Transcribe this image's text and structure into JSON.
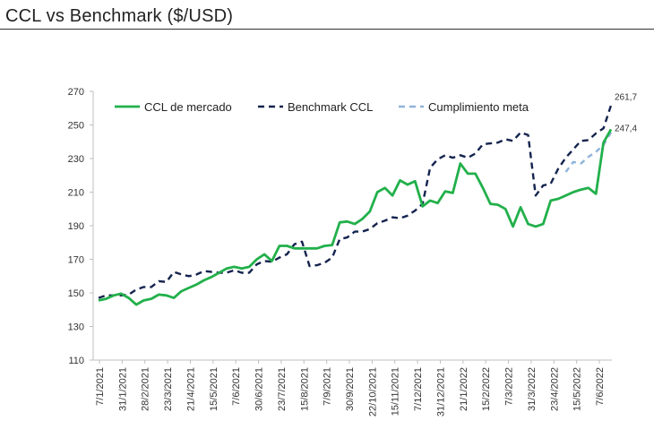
{
  "page": {
    "title": "CCL vs Benchmark ($/USD)"
  },
  "chart_data": {
    "type": "line",
    "title": "CCL vs Benchmark ($/USD)",
    "xlabel": "",
    "ylabel": "",
    "ylim": [
      110,
      270
    ],
    "yticks": [
      110,
      130,
      150,
      170,
      190,
      210,
      230,
      250,
      270
    ],
    "grid": false,
    "legend": "top",
    "x_tick_labels": [
      "7/1/2021",
      "31/1/2021",
      "28/2/2021",
      "23/3/2021",
      "21/4/2021",
      "15/5/2021",
      "7/6/2021",
      "30/6/2021",
      "23/7/2021",
      "15/8/2021",
      "7/9/2021",
      "30/9/2021",
      "22/10/2021",
      "15/11/2021",
      "7/12/2021",
      "31/12/2021",
      "21/1/2022",
      "15/2/2022",
      "7/3/2022",
      "31/3/2022",
      "23/4/2022",
      "15/5/2022",
      "7/6/2022"
    ],
    "series": [
      {
        "name": "CCL de mercado",
        "color": "#22b04b",
        "style": "solid",
        "values": [
          145.5,
          146.5,
          148.5,
          149.5,
          147,
          143,
          145.5,
          146.5,
          149,
          148.5,
          147,
          151,
          153,
          155,
          157.5,
          159.5,
          162,
          164.5,
          165.5,
          164.5,
          165.5,
          170,
          173,
          169,
          178,
          178,
          176.5,
          176.5,
          176.5,
          176.5,
          178,
          178.5,
          192,
          192.5,
          191,
          194,
          198.5,
          210,
          212.5,
          208,
          217,
          214.5,
          216.5,
          201.5,
          205,
          203.5,
          210.5,
          209.5,
          227,
          221,
          221,
          212.5,
          203,
          202.5,
          200,
          189.5,
          201,
          191,
          189.5,
          191,
          205,
          206,
          208,
          210,
          211.5,
          212.5,
          209,
          239.5,
          247.4
        ]
      },
      {
        "name": "Benchmark CCL",
        "color": "#14234e",
        "style": "dash",
        "values": [
          147,
          148.5,
          148.5,
          148.5,
          149,
          152,
          153.5,
          153.5,
          157,
          156.5,
          162.5,
          161,
          160,
          161,
          163,
          162.5,
          162,
          162,
          163.5,
          162,
          162,
          167,
          169,
          168.5,
          171,
          173,
          179,
          180.5,
          166,
          166.5,
          168,
          171,
          182,
          183,
          186.5,
          186.5,
          188,
          191.5,
          193,
          195,
          194.5,
          196,
          199,
          203,
          224.5,
          229.5,
          232,
          230.5,
          232,
          230.5,
          233,
          238.5,
          239,
          239.5,
          241.5,
          240.5,
          245.5,
          244,
          208,
          214,
          215,
          224,
          230.5,
          235.5,
          240.5,
          241,
          245,
          248,
          261.7
        ]
      },
      {
        "name": "Cumplimiento meta",
        "color": "#8fb3d9",
        "style": "dash",
        "values": [
          null,
          null,
          null,
          null,
          null,
          null,
          null,
          null,
          null,
          null,
          null,
          null,
          null,
          null,
          null,
          null,
          null,
          null,
          null,
          null,
          null,
          null,
          null,
          null,
          null,
          null,
          null,
          null,
          null,
          null,
          null,
          null,
          null,
          null,
          null,
          null,
          null,
          null,
          null,
          null,
          null,
          null,
          null,
          null,
          null,
          null,
          null,
          null,
          null,
          null,
          null,
          null,
          null,
          null,
          null,
          null,
          null,
          null,
          null,
          null,
          null,
          null,
          222,
          228,
          227,
          231,
          234,
          238,
          245.5
        ]
      }
    ],
    "end_labels": [
      "261,7",
      "247,4"
    ]
  }
}
